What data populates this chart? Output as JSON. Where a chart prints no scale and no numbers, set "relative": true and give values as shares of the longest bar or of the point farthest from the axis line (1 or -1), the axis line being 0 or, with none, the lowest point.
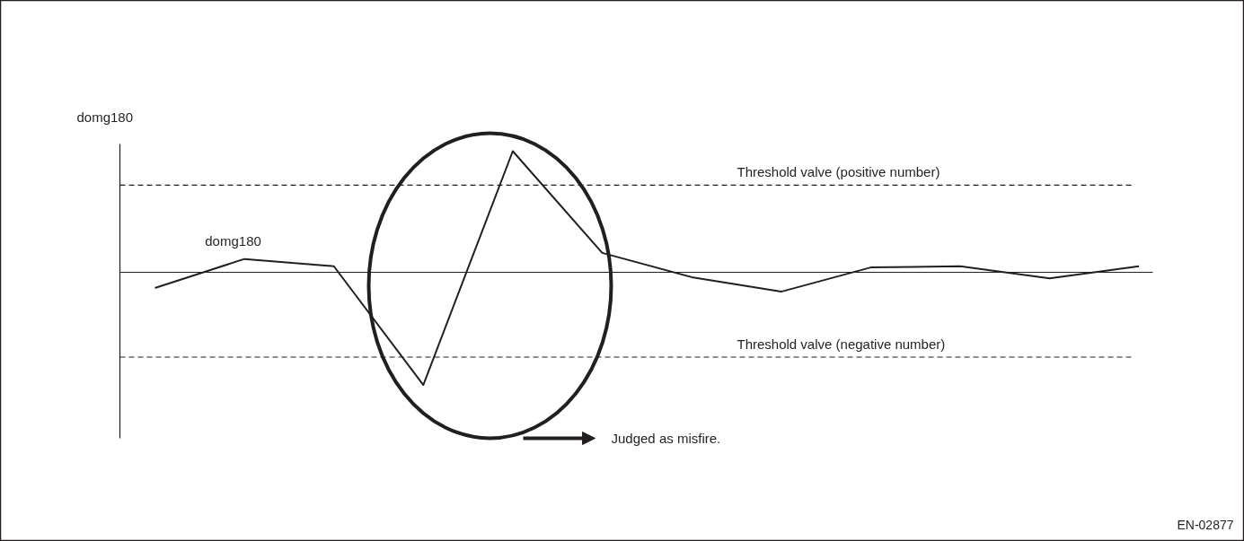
{
  "chart_data": {
    "type": "line",
    "relative": true,
    "ylabel": "domg180",
    "categories": [
      null,
      null,
      null,
      null,
      null,
      null,
      null,
      null,
      null,
      null,
      null,
      null
    ],
    "series": [
      {
        "name": "domg180",
        "color": "#231f20",
        "values": [
          -0.13,
          0.11,
          0.05,
          -0.93,
          1,
          0.16,
          -0.04,
          -0.16,
          0.04,
          0.05,
          -0.05,
          0.05
        ]
      }
    ],
    "ref_lines": [
      {
        "axis": "y",
        "value": 0.72,
        "label": "Threshold valve (positive number)",
        "color": "#231f20",
        "line_style": "dashed"
      },
      {
        "axis": "y",
        "value": -0.7,
        "label": "Threshold valve (negative number)",
        "color": "#231f20",
        "line_style": "dashed"
      }
    ],
    "annotations": [
      "Judged as misfire.",
      "EN-02877"
    ],
    "grid": false,
    "marker": "none",
    "line_style": "solid"
  }
}
